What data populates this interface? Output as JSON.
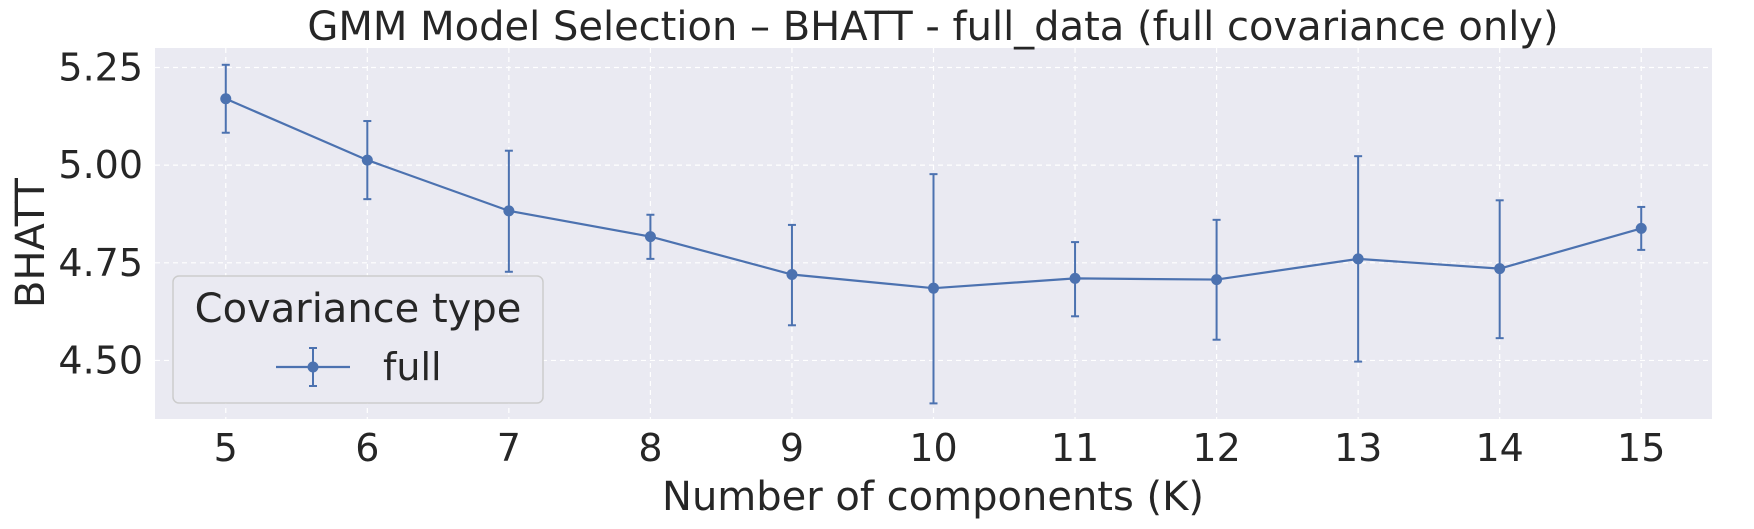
{
  "chart_data": {
    "type": "line",
    "title": "GMM Model Selection – BHATT - full_data (full covariance only)",
    "xlabel": "Number of components (K)",
    "ylabel": "BHATT",
    "x": [
      5,
      6,
      7,
      8,
      9,
      10,
      11,
      12,
      13,
      14,
      15
    ],
    "xticks": [
      "5",
      "6",
      "7",
      "8",
      "9",
      "10",
      "11",
      "12",
      "13",
      "14",
      "15"
    ],
    "yticks": [
      "4.50",
      "4.75",
      "5.00",
      "5.25"
    ],
    "ylim": [
      4.35,
      5.3
    ],
    "xlim": [
      4.5,
      15.5
    ],
    "grid": true,
    "legend": {
      "title": "Covariance type",
      "placement": "lower-left"
    },
    "series": [
      {
        "name": "full",
        "color": "#4c72b0",
        "marker": "circle",
        "values": [
          5.17,
          5.013,
          4.883,
          4.817,
          4.72,
          4.685,
          4.71,
          4.707,
          4.76,
          4.735,
          4.838
        ],
        "error_low": [
          5.083,
          4.913,
          4.727,
          4.76,
          4.59,
          4.39,
          4.613,
          4.553,
          4.497,
          4.557,
          4.783
        ],
        "error_high": [
          5.257,
          5.113,
          5.037,
          4.873,
          4.847,
          4.977,
          4.803,
          4.86,
          5.023,
          4.91,
          4.893
        ]
      }
    ],
    "colors": {
      "plot_background": "#eaeaf2",
      "grid": "#ffffff",
      "text": "#262626"
    }
  }
}
